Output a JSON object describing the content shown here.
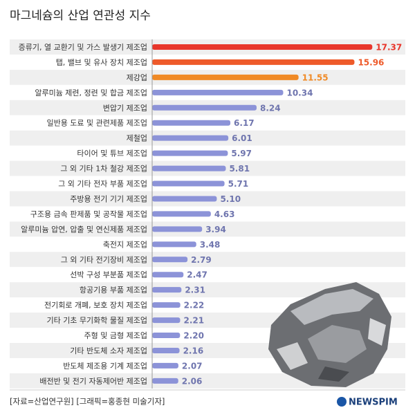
{
  "chart_data": {
    "type": "bar",
    "orientation": "horizontal",
    "title": "마그네슘의 산업 연관성 지수",
    "categories": [
      "증류기, 열 교환기 및 가스 발생기 제조업",
      "탭, 밸브 및 유사 장치 제조업",
      "제강업",
      "알루미늄 제련, 정련 및 합금 제조업",
      "변압기 제조업",
      "일반용 도료 및 관련제품 제조업",
      "제철업",
      "타이어 및 튜브 제조업",
      "그 외 기타 1차 철강 제조업",
      "그 외 기타 전자 부품 제조업",
      "주방용 전기 기기 제조업",
      "구조용 금속 판제품 및 공작물 제조업",
      "알루미늄 압연, 압출 및 연신제품 제조업",
      "축전지 제조업",
      "그 외 기타 전기장비 제조업",
      "선박 구성 부분품 제조업",
      "항공기용 부품 제조업",
      "전기회로 개폐, 보호 장치 제조업",
      "기타 기초 무기화학 물질 제조업",
      "주형 및 금형 제조업",
      "기타 반도체 소자 제조업",
      "반도체 제조용 기계 제조업",
      "배전반 및 전기 자동제어반 제조업"
    ],
    "values": [
      17.37,
      15.96,
      11.55,
      10.34,
      8.24,
      6.17,
      6.01,
      5.97,
      5.81,
      5.71,
      5.1,
      4.63,
      3.94,
      3.48,
      2.79,
      2.47,
      2.31,
      2.22,
      2.21,
      2.2,
      2.16,
      2.07,
      2.06
    ],
    "value_labels": [
      "17.37",
      "15.96",
      "11.55",
      "10.34",
      "8.24",
      "6.17",
      "6.01",
      "5.97",
      "5.81",
      "5.71",
      "5.10",
      "4.63",
      "3.94",
      "3.48",
      "2.79",
      "2.47",
      "2.31",
      "2.22",
      "2.21",
      "2.20",
      "2.16",
      "2.07",
      "2.06"
    ],
    "colors": [
      "#e8362b",
      "#ee5a2a",
      "#f08a26",
      "#8c93d8",
      "#8c93d8",
      "#8c93d8",
      "#8c93d8",
      "#8c93d8",
      "#8c93d8",
      "#8c93d8",
      "#8c93d8",
      "#8c93d8",
      "#8c93d8",
      "#8c93d8",
      "#8c93d8",
      "#8c93d8",
      "#8c93d8",
      "#8c93d8",
      "#8c93d8",
      "#8c93d8",
      "#8c93d8",
      "#8c93d8",
      "#8c93d8"
    ],
    "xlim": [
      0,
      18.5
    ],
    "source": "[자료=산업연구원] [그래픽=홍종현 미술기자]",
    "logo": "NEWSPIM"
  }
}
